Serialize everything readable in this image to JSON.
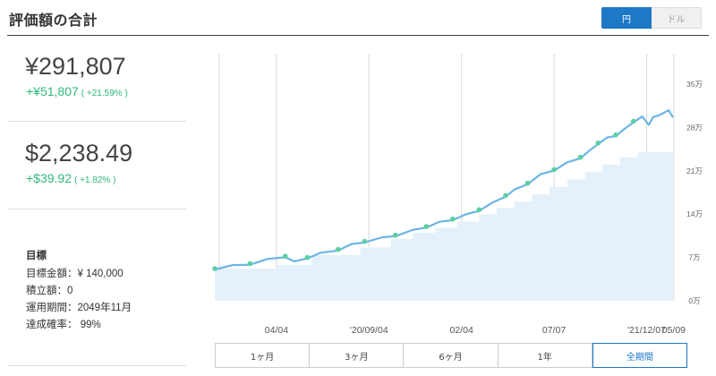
{
  "header": {
    "title": "評価額の合計",
    "currency_jpy": "円",
    "currency_usd": "ドル"
  },
  "jpy": {
    "value": "¥291,807",
    "gain": "+¥51,807",
    "gain_pct": "( +21.59% )"
  },
  "usd": {
    "value": "$2,238.49",
    "gain": "+$39.92",
    "gain_pct": "( +1.82% )"
  },
  "goal": {
    "title": "目標",
    "target": "目標金額：¥ 140,000",
    "contribution": "積立額：0",
    "period": "運用期間：2049年11月",
    "probability": "達成確率： 99%"
  },
  "ranges": [
    "1ヶ月",
    "3ヶ月",
    "6ヶ月",
    "1年",
    "全期間"
  ],
  "active_range": 4,
  "colors": {
    "accent": "#1e78c8",
    "gain": "#2db87a",
    "line": "#6cb4e6",
    "area": "#e4f1fa",
    "marker": "#5ad0a0"
  },
  "chart_data": {
    "type": "line",
    "y_unit_labels": [
      "0万",
      "7万",
      "14万",
      "21万",
      "28万",
      "35万"
    ],
    "y_ticks": [
      0,
      70000,
      140000,
      210000,
      280000,
      350000
    ],
    "ylim": [
      0,
      350000
    ],
    "x_tick_labels": [
      "04/04",
      "'20/09/04",
      "02/04",
      "07/07",
      "'21/12/07",
      "05/09"
    ],
    "grid": true,
    "series": [
      {
        "role": "valuation",
        "points": [
          [
            0,
            52000
          ],
          [
            4,
            56000
          ],
          [
            8,
            60000
          ],
          [
            12,
            66000
          ],
          [
            16,
            72000
          ],
          [
            18,
            62000
          ],
          [
            21,
            70000
          ],
          [
            24,
            76000
          ],
          [
            28,
            83000
          ],
          [
            31,
            90000
          ],
          [
            34,
            96000
          ],
          [
            38,
            101000
          ],
          [
            41,
            106000
          ],
          [
            45,
            113000
          ],
          [
            48,
            120000
          ],
          [
            51,
            126000
          ],
          [
            54,
            132000
          ],
          [
            57,
            138000
          ],
          [
            60,
            147000
          ],
          [
            63,
            157000
          ],
          [
            66,
            170000
          ],
          [
            68,
            178000
          ],
          [
            71,
            190000
          ],
          [
            74,
            203000
          ],
          [
            77,
            212000
          ],
          [
            80,
            222000
          ],
          [
            83,
            232000
          ],
          [
            85,
            241000
          ],
          [
            87,
            255000
          ],
          [
            89,
            262000
          ],
          [
            91,
            268000
          ],
          [
            93,
            276000
          ],
          [
            95,
            290000
          ],
          [
            97,
            296000
          ],
          [
            98.5,
            286000
          ],
          [
            99.5,
            295000
          ],
          [
            101,
            302000
          ],
          [
            103,
            306000
          ],
          [
            104,
            298000
          ]
        ]
      },
      {
        "role": "contribution",
        "steps": [
          [
            0,
            52000
          ],
          [
            14,
            58000
          ],
          [
            22,
            74000
          ],
          [
            33,
            86000
          ],
          [
            40,
            100000
          ],
          [
            45,
            110000
          ],
          [
            50,
            118000
          ],
          [
            55,
            128000
          ],
          [
            60,
            140000
          ],
          [
            64,
            150000
          ],
          [
            68,
            160000
          ],
          [
            72,
            172000
          ],
          [
            76,
            184000
          ],
          [
            80,
            196000
          ],
          [
            84,
            208000
          ],
          [
            88,
            220000
          ],
          [
            92,
            232000
          ],
          [
            96,
            240000
          ],
          [
            104,
            240000
          ]
        ]
      }
    ]
  }
}
